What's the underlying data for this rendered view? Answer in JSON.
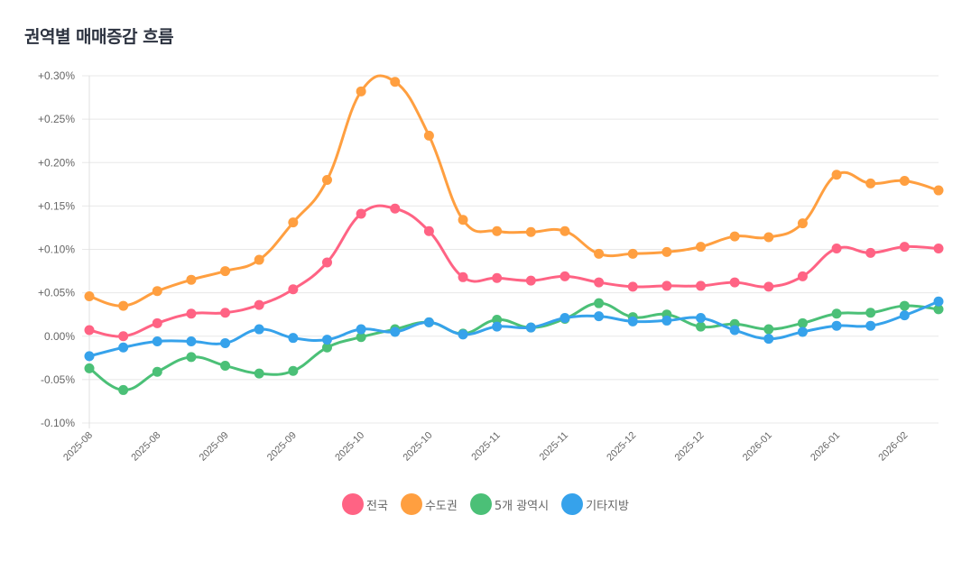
{
  "title": "권역별 매매증감 흐름",
  "chart_data": {
    "type": "line",
    "title": "권역별 매매증감 흐름",
    "xlabel": "",
    "ylabel": "",
    "ylim": [
      -0.1,
      0.3
    ],
    "yticks": [
      "+0.30%",
      "+0.25%",
      "+0.20%",
      "+0.15%",
      "+0.10%",
      "+0.05%",
      "0.00%",
      "-0.05%",
      "-0.10%"
    ],
    "ytick_values": [
      0.3,
      0.25,
      0.2,
      0.15,
      0.1,
      0.05,
      0.0,
      -0.05,
      -0.1
    ],
    "xtick_labels": [
      "2025-08",
      "2025-08",
      "2025-09",
      "2025-09",
      "2025-10",
      "2025-10",
      "2025-11",
      "2025-11",
      "2025-12",
      "2025-12",
      "2026-01",
      "2026-01",
      "2026-02"
    ],
    "point_count": 26,
    "xtick_every": 2,
    "grid": true,
    "legend_position": "bottom",
    "series": [
      {
        "name": "전국",
        "color": "#ff6384",
        "values": [
          0.007,
          0.0,
          0.015,
          0.026,
          0.027,
          0.036,
          0.054,
          0.085,
          0.141,
          0.147,
          0.121,
          0.068,
          0.067,
          0.064,
          0.069,
          0.062,
          0.057,
          0.058,
          0.058,
          0.062,
          0.057,
          0.069,
          0.101,
          0.096,
          0.103,
          0.101
        ]
      },
      {
        "name": "수도권",
        "color": "#ff9f40",
        "values": [
          0.046,
          0.035,
          0.052,
          0.065,
          0.075,
          0.088,
          0.131,
          0.18,
          0.282,
          0.293,
          0.231,
          0.134,
          0.121,
          0.12,
          0.121,
          0.095,
          0.095,
          0.097,
          0.103,
          0.115,
          0.114,
          0.13,
          0.186,
          0.176,
          0.179,
          0.168
        ]
      },
      {
        "name": "5개 광역시",
        "color": "#4bc077",
        "values": [
          -0.037,
          -0.062,
          -0.041,
          -0.024,
          -0.034,
          -0.043,
          -0.04,
          -0.013,
          -0.001,
          0.008,
          0.016,
          0.003,
          0.019,
          0.01,
          0.02,
          0.038,
          0.022,
          0.025,
          0.011,
          0.014,
          0.008,
          0.015,
          0.026,
          0.027,
          0.035,
          0.031
        ]
      },
      {
        "name": "기타지방",
        "color": "#36a2eb",
        "values": [
          -0.023,
          -0.013,
          -0.006,
          -0.006,
          -0.008,
          0.008,
          -0.002,
          -0.004,
          0.008,
          0.005,
          0.016,
          0.002,
          0.011,
          0.01,
          0.021,
          0.023,
          0.017,
          0.018,
          0.021,
          0.007,
          -0.003,
          0.005,
          0.012,
          0.012,
          0.024,
          0.04
        ]
      }
    ]
  }
}
